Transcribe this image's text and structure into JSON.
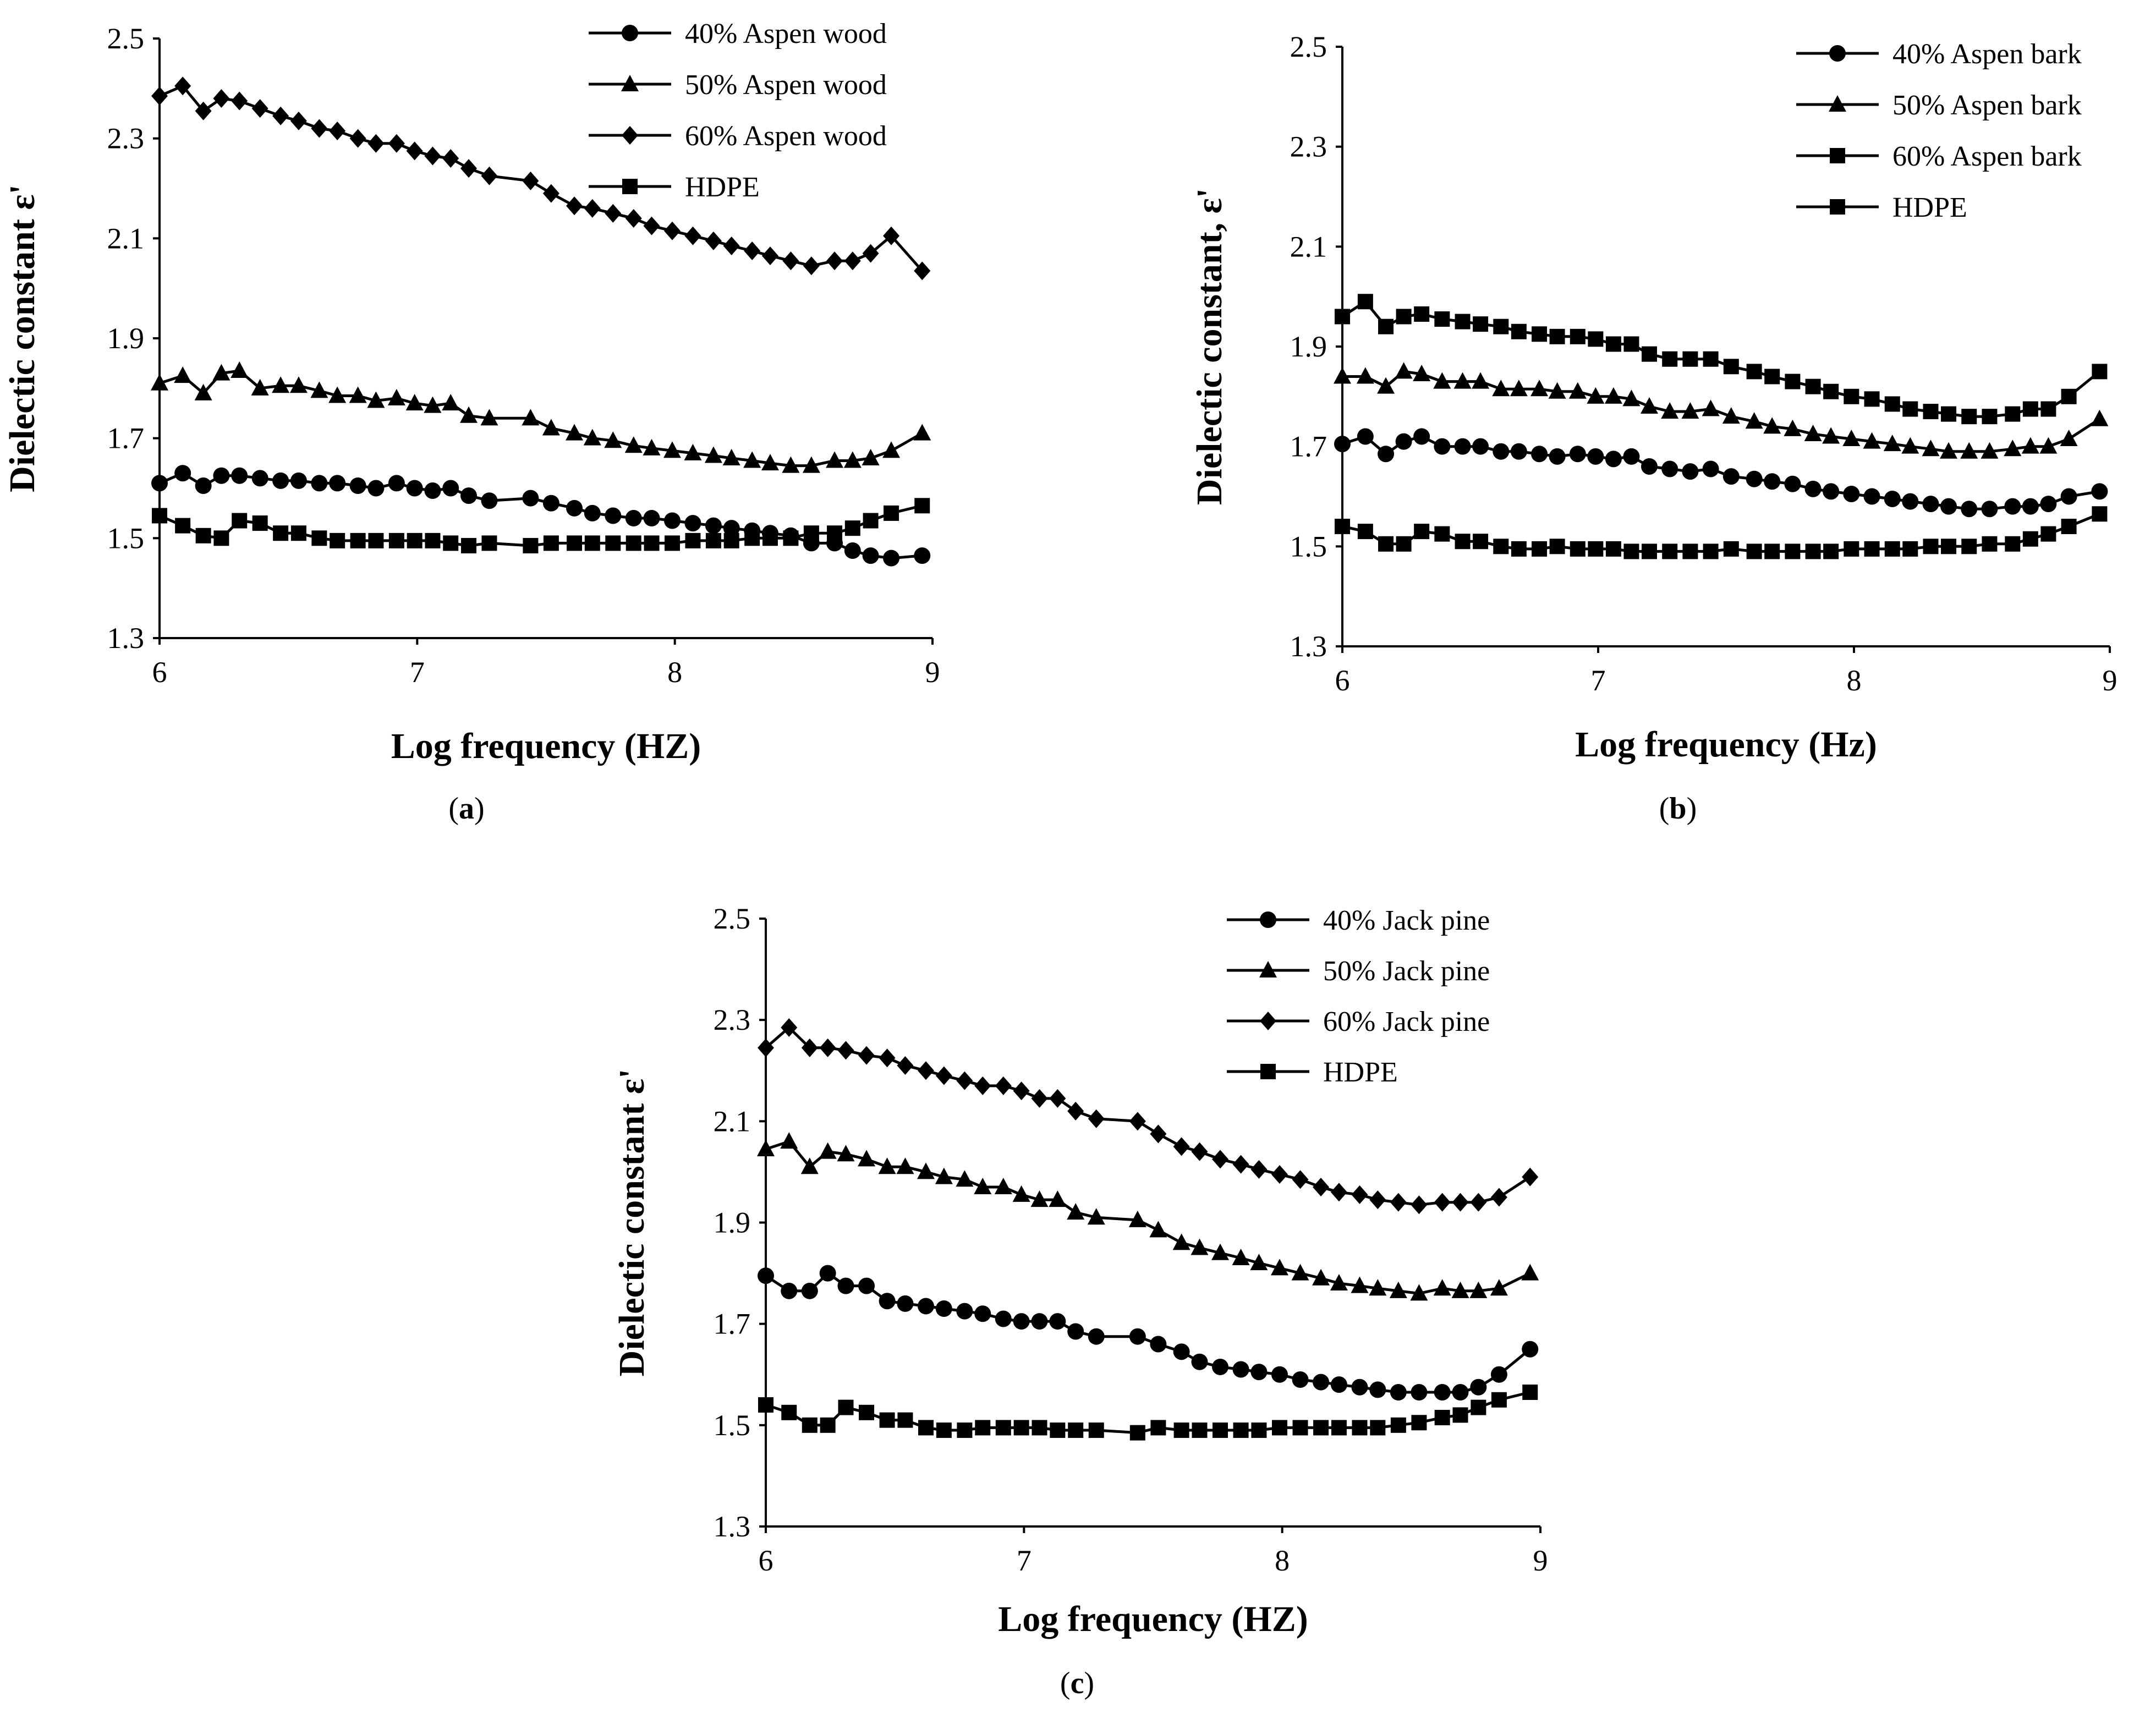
{
  "chart_data": [
    {
      "type": "line",
      "id": "a",
      "caption_letter": "a",
      "xlabel": "Log frequency (HZ)",
      "ylabel": "Dielectic constant ε'",
      "xlim": [
        6,
        9
      ],
      "ylim": [
        1.3,
        2.5
      ],
      "xticks": [
        "6",
        "7",
        "8",
        "9"
      ],
      "yticks": [
        "1.3",
        "1.5",
        "1.7",
        "1.9",
        "2.1",
        "2.3",
        "2.5"
      ],
      "x": [
        6.0,
        6.09,
        6.17,
        6.24,
        6.31,
        6.39,
        6.47,
        6.54,
        6.62,
        6.69,
        6.77,
        6.84,
        6.92,
        6.99,
        7.06,
        7.13,
        7.2,
        7.28,
        7.44,
        7.52,
        7.61,
        7.68,
        7.76,
        7.84,
        7.91,
        7.99,
        8.07,
        8.15,
        8.22,
        8.3,
        8.37,
        8.45,
        8.53,
        8.62,
        8.69,
        8.76,
        8.84,
        8.96
      ],
      "series": [
        {
          "name": "40% Aspen wood",
          "marker": "circle",
          "values": [
            1.61,
            1.63,
            1.605,
            1.625,
            1.625,
            1.62,
            1.615,
            1.615,
            1.61,
            1.61,
            1.605,
            1.6,
            1.61,
            1.6,
            1.595,
            1.6,
            1.585,
            1.575,
            1.58,
            1.57,
            1.56,
            1.55,
            1.545,
            1.54,
            1.54,
            1.535,
            1.53,
            1.525,
            1.52,
            1.515,
            1.51,
            1.505,
            1.49,
            1.49,
            1.475,
            1.465,
            1.46,
            1.465
          ]
        },
        {
          "name": "50% Aspen wood",
          "marker": "triangle",
          "values": [
            1.81,
            1.825,
            1.79,
            1.83,
            1.835,
            1.8,
            1.805,
            1.805,
            1.795,
            1.785,
            1.785,
            1.775,
            1.78,
            1.77,
            1.765,
            1.77,
            1.745,
            1.74,
            1.74,
            1.72,
            1.71,
            1.7,
            1.695,
            1.685,
            1.68,
            1.675,
            1.67,
            1.665,
            1.66,
            1.655,
            1.65,
            1.645,
            1.645,
            1.655,
            1.655,
            1.66,
            1.675,
            1.71
          ]
        },
        {
          "name": "60% Aspen wood",
          "marker": "diamond",
          "values": [
            2.385,
            2.405,
            2.355,
            2.38,
            2.375,
            2.36,
            2.345,
            2.335,
            2.32,
            2.315,
            2.3,
            2.29,
            2.29,
            2.275,
            2.265,
            2.26,
            2.24,
            2.225,
            2.215,
            2.19,
            2.165,
            2.16,
            2.15,
            2.14,
            2.125,
            2.115,
            2.105,
            2.095,
            2.085,
            2.075,
            2.065,
            2.055,
            2.045,
            2.055,
            2.055,
            2.07,
            2.105,
            2.035
          ]
        },
        {
          "name": "HDPE",
          "marker": "square",
          "values": [
            1.545,
            1.525,
            1.505,
            1.5,
            1.535,
            1.53,
            1.51,
            1.51,
            1.5,
            1.495,
            1.495,
            1.495,
            1.495,
            1.495,
            1.495,
            1.49,
            1.485,
            1.49,
            1.485,
            1.49,
            1.49,
            1.49,
            1.49,
            1.49,
            1.49,
            1.49,
            1.495,
            1.495,
            1.495,
            1.5,
            1.5,
            1.5,
            1.51,
            1.51,
            1.52,
            1.535,
            1.55,
            1.565
          ]
        }
      ]
    },
    {
      "type": "line",
      "id": "b",
      "caption_letter": "b",
      "xlabel": "Log frequency (Hz)",
      "ylabel": "Dielectic constant, ε'",
      "xlim": [
        6,
        9
      ],
      "ylim": [
        1.3,
        2.5
      ],
      "xticks": [
        "6",
        "7",
        "8",
        "9"
      ],
      "yticks": [
        "1.3",
        "1.5",
        "1.7",
        "1.9",
        "2.1",
        "2.3",
        "2.5"
      ],
      "x": [
        6.0,
        6.09,
        6.17,
        6.24,
        6.31,
        6.39,
        6.47,
        6.54,
        6.62,
        6.69,
        6.77,
        6.84,
        6.92,
        6.99,
        7.06,
        7.13,
        7.2,
        7.28,
        7.36,
        7.44,
        7.52,
        7.61,
        7.68,
        7.76,
        7.84,
        7.91,
        7.99,
        8.07,
        8.15,
        8.22,
        8.3,
        8.37,
        8.45,
        8.53,
        8.62,
        8.69,
        8.76,
        8.84,
        8.96
      ],
      "series": [
        {
          "name": "40% Aspen bark",
          "marker": "circle",
          "values": [
            1.705,
            1.72,
            1.685,
            1.71,
            1.72,
            1.7,
            1.7,
            1.7,
            1.69,
            1.69,
            1.685,
            1.68,
            1.685,
            1.68,
            1.675,
            1.68,
            1.66,
            1.655,
            1.65,
            1.655,
            1.64,
            1.635,
            1.63,
            1.625,
            1.615,
            1.61,
            1.605,
            1.6,
            1.595,
            1.59,
            1.585,
            1.58,
            1.575,
            1.575,
            1.58,
            1.58,
            1.585,
            1.6,
            1.61
          ]
        },
        {
          "name": "50% Aspen bark",
          "marker": "triangle",
          "values": [
            1.84,
            1.84,
            1.82,
            1.85,
            1.845,
            1.83,
            1.83,
            1.83,
            1.815,
            1.815,
            1.815,
            1.81,
            1.81,
            1.8,
            1.8,
            1.795,
            1.78,
            1.77,
            1.77,
            1.775,
            1.76,
            1.75,
            1.74,
            1.735,
            1.725,
            1.72,
            1.715,
            1.71,
            1.705,
            1.7,
            1.695,
            1.69,
            1.69,
            1.69,
            1.695,
            1.7,
            1.7,
            1.715,
            1.755
          ]
        },
        {
          "name": "60% Aspen bark",
          "marker": "square",
          "values": [
            1.96,
            1.99,
            1.94,
            1.96,
            1.965,
            1.955,
            1.95,
            1.945,
            1.94,
            1.93,
            1.925,
            1.92,
            1.92,
            1.915,
            1.905,
            1.905,
            1.885,
            1.875,
            1.875,
            1.875,
            1.86,
            1.85,
            1.84,
            1.83,
            1.82,
            1.81,
            1.8,
            1.795,
            1.785,
            1.775,
            1.77,
            1.765,
            1.76,
            1.76,
            1.765,
            1.775,
            1.775,
            1.8,
            1.85
          ]
        },
        {
          "name": "HDPE",
          "marker": "square",
          "values": [
            1.54,
            1.53,
            1.505,
            1.505,
            1.53,
            1.525,
            1.51,
            1.51,
            1.5,
            1.495,
            1.495,
            1.5,
            1.495,
            1.495,
            1.495,
            1.49,
            1.49,
            1.49,
            1.49,
            1.49,
            1.495,
            1.49,
            1.49,
            1.49,
            1.49,
            1.49,
            1.495,
            1.495,
            1.495,
            1.495,
            1.5,
            1.5,
            1.5,
            1.505,
            1.505,
            1.515,
            1.525,
            1.54,
            1.565
          ]
        }
      ]
    },
    {
      "type": "line",
      "id": "c",
      "caption_letter": "c",
      "xlabel": "Log frequency (HZ)",
      "ylabel": "Dielectic constant ε'",
      "xlim": [
        6,
        9
      ],
      "ylim": [
        1.3,
        2.5
      ],
      "xticks": [
        "6",
        "7",
        "8",
        "9"
      ],
      "yticks": [
        "1.3",
        "1.5",
        "1.7",
        "1.9",
        "2.1",
        "2.3",
        "2.5"
      ],
      "x": [
        6.0,
        6.09,
        6.17,
        6.24,
        6.31,
        6.39,
        6.47,
        6.54,
        6.62,
        6.69,
        6.77,
        6.84,
        6.92,
        6.99,
        7.06,
        7.13,
        7.2,
        7.28,
        7.44,
        7.52,
        7.61,
        7.68,
        7.76,
        7.84,
        7.91,
        7.99,
        8.07,
        8.15,
        8.22,
        8.3,
        8.37,
        8.45,
        8.53,
        8.62,
        8.69,
        8.76,
        8.84,
        8.96
      ],
      "series": [
        {
          "name": "40% Jack pine",
          "marker": "circle",
          "values": [
            1.795,
            1.765,
            1.765,
            1.8,
            1.775,
            1.775,
            1.745,
            1.74,
            1.735,
            1.73,
            1.725,
            1.72,
            1.71,
            1.705,
            1.705,
            1.705,
            1.685,
            1.675,
            1.675,
            1.66,
            1.645,
            1.625,
            1.615,
            1.61,
            1.605,
            1.6,
            1.59,
            1.585,
            1.58,
            1.575,
            1.57,
            1.565,
            1.565,
            1.565,
            1.565,
            1.575,
            1.6,
            1.65
          ]
        },
        {
          "name": "50% Jack pine",
          "marker": "triangle",
          "values": [
            2.045,
            2.06,
            2.01,
            2.04,
            2.035,
            2.025,
            2.01,
            2.01,
            2.0,
            1.99,
            1.985,
            1.97,
            1.97,
            1.955,
            1.945,
            1.945,
            1.92,
            1.91,
            1.905,
            1.885,
            1.86,
            1.85,
            1.84,
            1.83,
            1.82,
            1.81,
            1.8,
            1.79,
            1.78,
            1.775,
            1.77,
            1.765,
            1.76,
            1.77,
            1.765,
            1.765,
            1.77,
            1.8
          ]
        },
        {
          "name": "60% Jack pine",
          "marker": "diamond",
          "values": [
            2.245,
            2.285,
            2.245,
            2.245,
            2.24,
            2.23,
            2.225,
            2.21,
            2.2,
            2.19,
            2.18,
            2.17,
            2.17,
            2.16,
            2.145,
            2.145,
            2.12,
            2.105,
            2.1,
            2.075,
            2.05,
            2.04,
            2.025,
            2.015,
            2.005,
            1.995,
            1.985,
            1.97,
            1.96,
            1.955,
            1.945,
            1.94,
            1.935,
            1.94,
            1.94,
            1.94,
            1.95,
            1.99
          ]
        },
        {
          "name": "HDPE",
          "marker": "square",
          "values": [
            1.54,
            1.525,
            1.5,
            1.5,
            1.535,
            1.525,
            1.51,
            1.51,
            1.495,
            1.49,
            1.49,
            1.495,
            1.495,
            1.495,
            1.495,
            1.49,
            1.49,
            1.49,
            1.485,
            1.495,
            1.49,
            1.49,
            1.49,
            1.49,
            1.49,
            1.495,
            1.495,
            1.495,
            1.495,
            1.495,
            1.495,
            1.5,
            1.505,
            1.515,
            1.52,
            1.535,
            1.55,
            1.565
          ]
        }
      ]
    }
  ]
}
